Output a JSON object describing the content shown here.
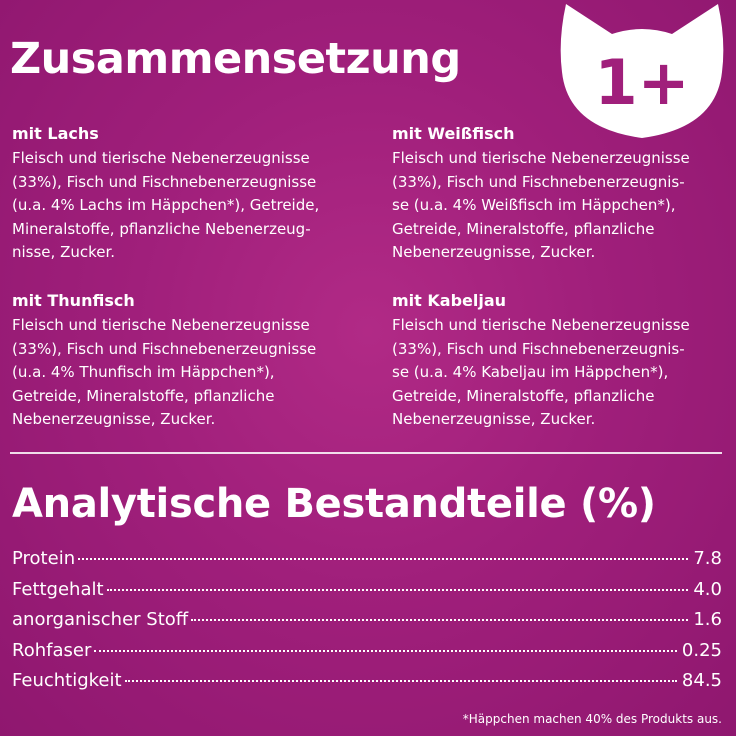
{
  "header": {
    "title": "Zusammensetzung",
    "badge_text": "1+"
  },
  "compositions": [
    {
      "title": "mit Lachs",
      "text": "Fleisch und tierische Nebenerzeugnisse\n(33%), Fisch und Fischnebenerzeugnisse\n(u.a. 4% Lachs im Häppchen*), Getreide,\nMineralstoffe, pflanzliche Nebenerzeug-\nnisse, Zucker."
    },
    {
      "title": "mit Weißfisch",
      "text": "Fleisch und tierische Nebenerzeugnisse\n(33%), Fisch und Fischnebenerzeugnis-\nse (u.a. 4% Weißfisch im Häppchen*),\nGetreide, Mineralstoffe, pflanzliche\nNebenerzeugnisse, Zucker."
    },
    {
      "title": "mit Thunfisch",
      "text": "Fleisch und tierische Nebenerzeugnisse\n(33%), Fisch und Fischnebenerzeugnisse\n(u.a. 4% Thunfisch im Häppchen*),\nGetreide, Mineralstoffe, pflanzliche\nNebenerzeugnisse, Zucker."
    },
    {
      "title": "mit Kabeljau",
      "text": "Fleisch und tierische Nebenerzeugnisse\n(33%), Fisch und Fischnebenerzeugnis-\nse (u.a. 4% Kabeljau im Häppchen*),\nGetreide, Mineralstoffe, pflanzliche\nNebenerzeugnisse, Zucker."
    }
  ],
  "analytics": {
    "title": "Analytische Bestandteile (%)",
    "rows": [
      {
        "label": "Protein",
        "value": "7.8"
      },
      {
        "label": "Fettgehalt",
        "value": "4.0"
      },
      {
        "label": "anorganischer Stoff",
        "value": "1.6"
      },
      {
        "label": "Rohfaser",
        "value": "0.25"
      },
      {
        "label": "Feuchtigkeit",
        "value": "84.5"
      }
    ]
  },
  "footnote": "*Häppchen machen 40% des Produkts aus.",
  "colors": {
    "background": "#a01f7b",
    "text": "#ffffff",
    "badge_fill": "#ffffff",
    "badge_text": "#a01f7b"
  }
}
